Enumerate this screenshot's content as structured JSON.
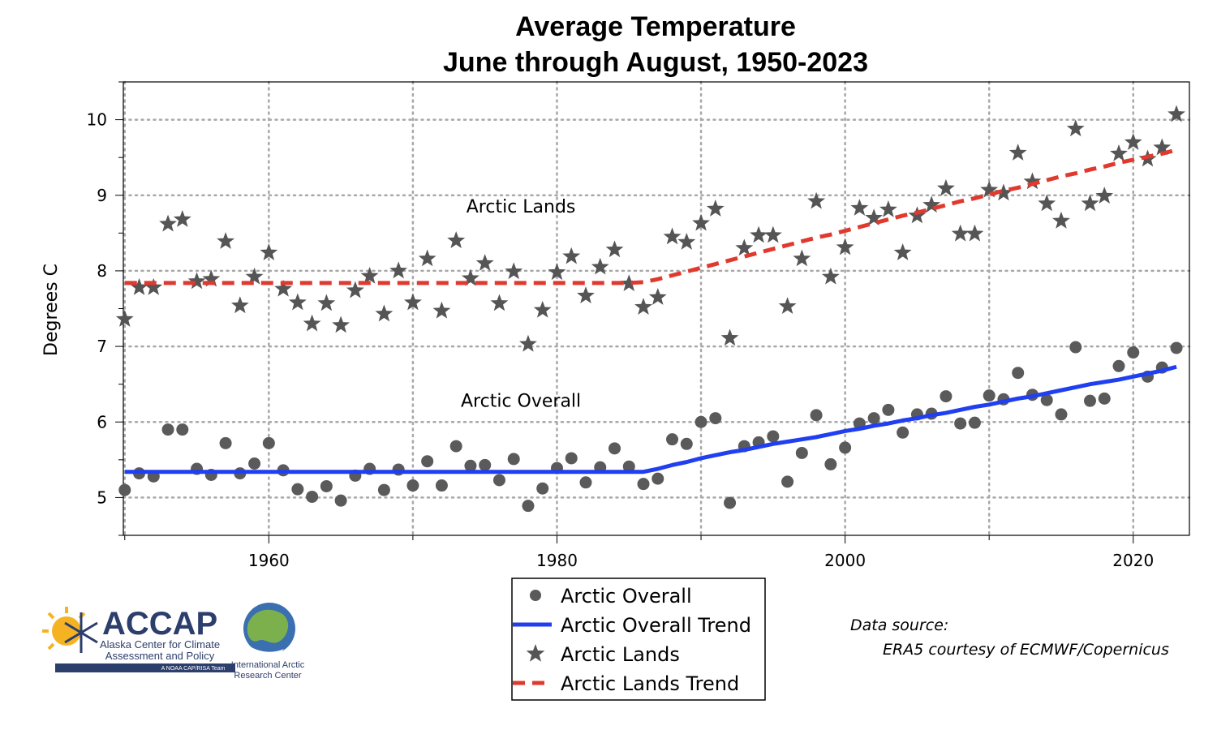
{
  "chart_data": {
    "type": "scatter",
    "title_line1": "Average Temperature",
    "title_line2": "June through August, 1950-2023",
    "ylabel": "Degrees C",
    "xlim": [
      1949.9,
      2023.9
    ],
    "ylim": [
      4.5,
      10.5
    ],
    "x_ticks": [
      1960,
      1980,
      2000,
      2020
    ],
    "x_minor_ticks": [
      1950,
      1970,
      1990,
      2010
    ],
    "y_ticks": [
      5,
      6,
      7,
      8,
      9,
      10
    ],
    "grid": true,
    "annotations": [
      {
        "text": "Arctic Lands",
        "x": 1977.5,
        "y": 8.77
      },
      {
        "text": "Arctic Overall",
        "x": 1977.5,
        "y": 6.2
      }
    ],
    "x": [
      1950,
      1951,
      1952,
      1953,
      1954,
      1955,
      1956,
      1957,
      1958,
      1959,
      1960,
      1961,
      1962,
      1963,
      1964,
      1965,
      1966,
      1967,
      1968,
      1969,
      1970,
      1971,
      1972,
      1973,
      1974,
      1975,
      1976,
      1977,
      1978,
      1979,
      1980,
      1981,
      1982,
      1983,
      1984,
      1985,
      1986,
      1987,
      1988,
      1989,
      1990,
      1991,
      1992,
      1993,
      1994,
      1995,
      1996,
      1997,
      1998,
      1999,
      2000,
      2001,
      2002,
      2003,
      2004,
      2005,
      2006,
      2007,
      2008,
      2009,
      2010,
      2011,
      2012,
      2013,
      2014,
      2015,
      2016,
      2017,
      2018,
      2019,
      2020,
      2021,
      2022,
      2023
    ],
    "series": [
      {
        "name": "Arctic Overall",
        "marker": "circle",
        "color": "#5a5a5a",
        "values": [
          5.1,
          5.32,
          5.28,
          5.9,
          5.9,
          5.38,
          5.3,
          5.72,
          5.32,
          5.45,
          5.72,
          5.36,
          5.11,
          5.01,
          5.15,
          4.96,
          5.29,
          5.38,
          5.1,
          5.37,
          5.16,
          5.48,
          5.16,
          5.68,
          5.42,
          5.43,
          5.23,
          5.51,
          4.89,
          5.12,
          5.39,
          5.52,
          5.2,
          5.4,
          5.65,
          5.41,
          5.18,
          5.25,
          5.77,
          5.71,
          6.0,
          6.05,
          4.93,
          5.68,
          5.73,
          5.81,
          5.21,
          5.59,
          6.09,
          5.44,
          5.66,
          5.98,
          6.05,
          6.16,
          5.86,
          6.1,
          6.11,
          6.34,
          5.98,
          5.99,
          6.35,
          6.3,
          6.65,
          6.36,
          6.29,
          6.1,
          6.99,
          6.28,
          6.31,
          6.74,
          6.92,
          6.6,
          6.72,
          6.98
        ]
      },
      {
        "name": "Arctic Overall Trend",
        "marker": "line",
        "color": "#1f3ff0",
        "values": [
          5.34,
          5.34,
          5.34,
          5.34,
          5.34,
          5.34,
          5.34,
          5.34,
          5.34,
          5.34,
          5.34,
          5.34,
          5.34,
          5.34,
          5.34,
          5.34,
          5.34,
          5.34,
          5.34,
          5.34,
          5.34,
          5.34,
          5.34,
          5.34,
          5.34,
          5.34,
          5.34,
          5.34,
          5.34,
          5.34,
          5.34,
          5.34,
          5.34,
          5.34,
          5.34,
          5.34,
          5.34,
          5.38,
          5.43,
          5.47,
          5.52,
          5.56,
          5.6,
          5.63,
          5.67,
          5.71,
          5.74,
          5.77,
          5.8,
          5.84,
          5.88,
          5.91,
          5.95,
          5.98,
          6.02,
          6.05,
          6.09,
          6.12,
          6.16,
          6.2,
          6.23,
          6.27,
          6.31,
          6.34,
          6.38,
          6.42,
          6.46,
          6.5,
          6.53,
          6.56,
          6.6,
          6.64,
          6.68,
          6.73
        ]
      },
      {
        "name": "Arctic Lands",
        "marker": "star",
        "color": "#555555",
        "values": [
          7.36,
          7.78,
          7.78,
          8.62,
          8.68,
          7.86,
          7.89,
          8.39,
          7.54,
          7.92,
          8.24,
          7.76,
          7.58,
          7.3,
          7.57,
          7.28,
          7.74,
          7.93,
          7.43,
          8.0,
          7.58,
          8.16,
          7.47,
          8.4,
          7.9,
          8.1,
          7.57,
          7.99,
          7.03,
          7.48,
          7.98,
          8.19,
          7.67,
          8.05,
          8.28,
          7.83,
          7.52,
          7.65,
          8.45,
          8.38,
          8.63,
          8.82,
          7.11,
          8.3,
          8.47,
          8.47,
          7.53,
          8.16,
          8.92,
          7.92,
          8.31,
          8.83,
          8.7,
          8.81,
          8.24,
          8.73,
          8.87,
          9.09,
          8.49,
          8.49,
          9.07,
          9.03,
          9.56,
          9.18,
          8.89,
          8.66,
          9.88,
          8.89,
          8.99,
          9.55,
          9.7,
          9.48,
          9.63,
          10.07
        ]
      },
      {
        "name": "Arctic Lands Trend",
        "marker": "dashed",
        "color": "#e03a2f",
        "values": [
          7.84,
          7.84,
          7.84,
          7.84,
          7.84,
          7.84,
          7.84,
          7.84,
          7.84,
          7.84,
          7.84,
          7.84,
          7.84,
          7.84,
          7.84,
          7.84,
          7.84,
          7.84,
          7.84,
          7.84,
          7.84,
          7.84,
          7.84,
          7.84,
          7.84,
          7.84,
          7.84,
          7.84,
          7.84,
          7.84,
          7.84,
          7.84,
          7.84,
          7.84,
          7.84,
          7.84,
          7.85,
          7.89,
          7.94,
          7.99,
          8.04,
          8.09,
          8.14,
          8.19,
          8.24,
          8.29,
          8.34,
          8.39,
          8.44,
          8.48,
          8.53,
          8.58,
          8.63,
          8.68,
          8.73,
          8.77,
          8.82,
          8.87,
          8.92,
          8.96,
          9.01,
          9.06,
          9.1,
          9.15,
          9.2,
          9.25,
          9.29,
          9.34,
          9.38,
          9.43,
          9.47,
          9.51,
          9.55,
          9.6
        ]
      }
    ],
    "legend": {
      "placement": "bottom-center",
      "entries": [
        "Arctic Overall",
        "Arctic Overall Trend",
        "Arctic Lands",
        "Arctic Lands Trend"
      ]
    }
  },
  "source": {
    "line1": "Data source:",
    "line2": "ERA5 courtesy of ECMWF/Copernicus"
  },
  "logos": {
    "accap_name": "ACCAP",
    "accap_line1": "Alaska Center for Climate",
    "accap_line2": "Assessment and Policy",
    "accap_tag": "A NOAA CAP/RISA Team",
    "iarc_line1": "International Arctic",
    "iarc_line2": "Research Center"
  }
}
